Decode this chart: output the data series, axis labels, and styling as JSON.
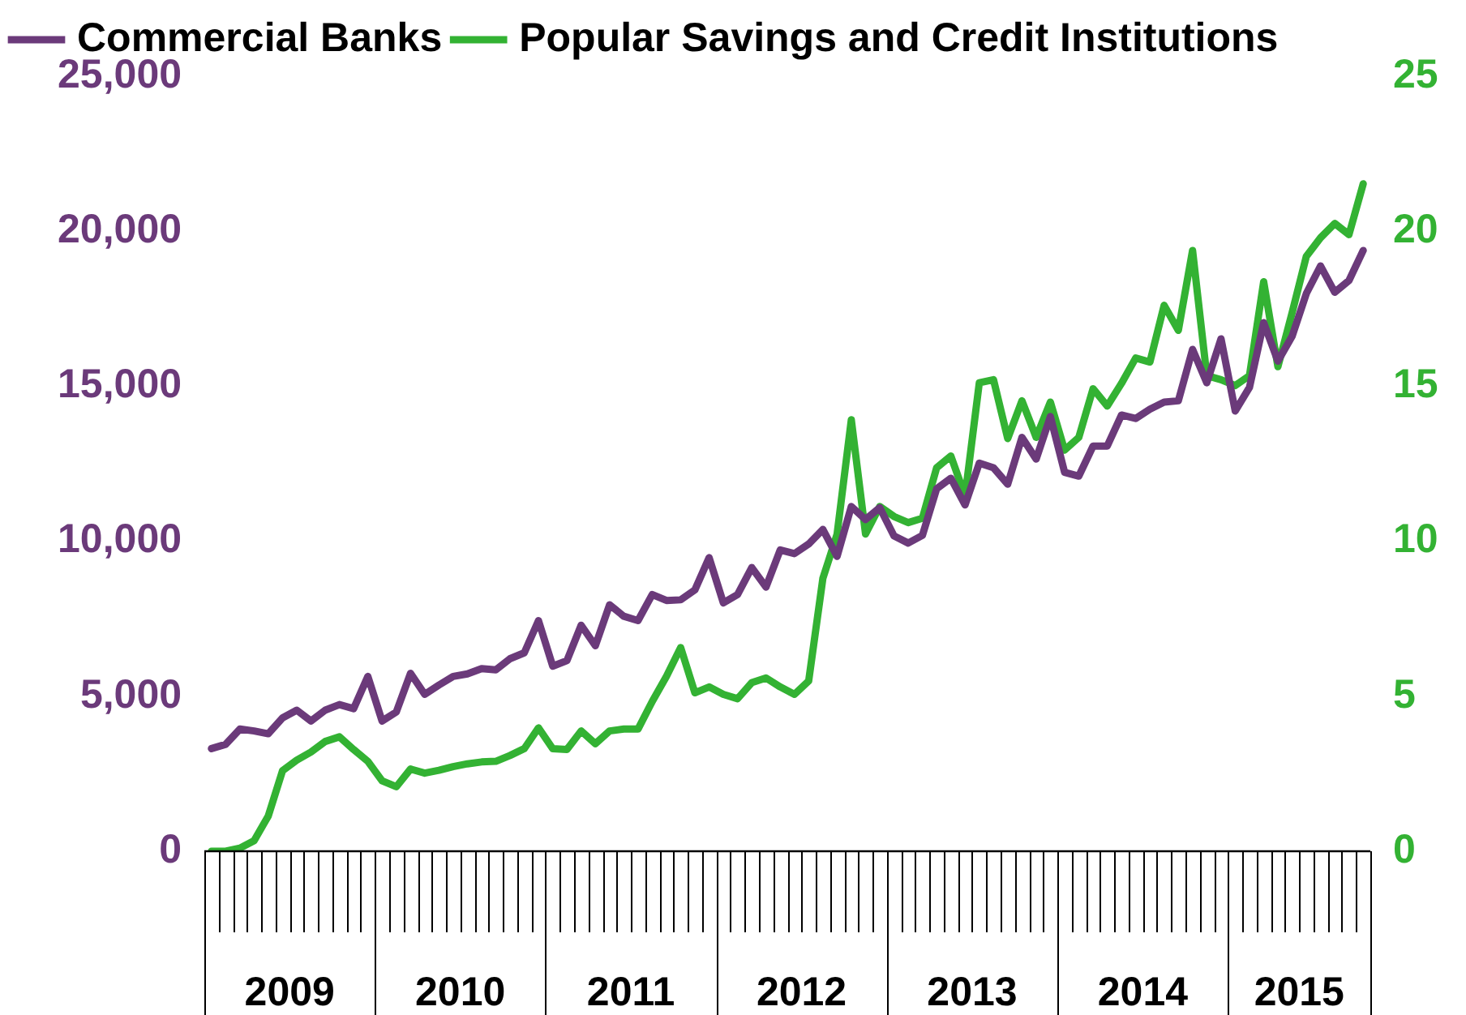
{
  "chart_data": {
    "type": "line",
    "legend": "top left",
    "marker": "none",
    "line_style": "solid",
    "grid": false,
    "categories": [
      null,
      null,
      null,
      null,
      null,
      "2009",
      null,
      null,
      null,
      null,
      null,
      null,
      null,
      null,
      null,
      null,
      null,
      "2010",
      null,
      null,
      null,
      null,
      null,
      null,
      null,
      null,
      null,
      null,
      null,
      "2011",
      null,
      null,
      null,
      null,
      null,
      null,
      null,
      null,
      null,
      null,
      null,
      "2012",
      null,
      null,
      null,
      null,
      null,
      null,
      null,
      null,
      null,
      null,
      null,
      "2013",
      null,
      null,
      null,
      null,
      null,
      null,
      null,
      null,
      null,
      null,
      null,
      "2014",
      null,
      null,
      null,
      null,
      null,
      null,
      null,
      null,
      null,
      null,
      null,
      "2015",
      null,
      null,
      null,
      null
    ],
    "ylim": [
      0,
      25000
    ],
    "yticks": [
      0,
      {
        "value": 5000,
        "label": "5,000"
      },
      {
        "value": 10000,
        "label": "10,000"
      },
      {
        "value": 15000,
        "label": "15,000"
      },
      {
        "value": 20000,
        "label": "20,000"
      },
      {
        "value": 25000,
        "label": "25,000"
      }
    ],
    "y2lim": [
      0,
      25
    ],
    "y2ticks": [
      0,
      5,
      10,
      15,
      20,
      25
    ],
    "series": [
      {
        "name": "Commercial Banks",
        "color": "#6b3a7a",
        "values": [
          3310,
          3450,
          3940,
          3880,
          3790,
          4300,
          4550,
          4200,
          4550,
          4730,
          4600,
          5640,
          4200,
          4490,
          5740,
          5060,
          5360,
          5640,
          5720,
          5890,
          5850,
          6210,
          6400,
          7440,
          5970,
          6150,
          7290,
          6630,
          7950,
          7580,
          7440,
          8280,
          8090,
          8110,
          8430,
          9470,
          8010,
          8280,
          9150,
          8520,
          9720,
          9600,
          9910,
          10380,
          9510,
          11120,
          10700,
          11080,
          10170,
          9940,
          10190,
          11690,
          12030,
          11170,
          12520,
          12370,
          11840,
          13350,
          12650,
          14020,
          12220,
          12100,
          13070,
          13070,
          14070,
          13960,
          14260,
          14490,
          14530,
          16190,
          15110,
          16530,
          14200,
          14960,
          17050,
          15810,
          16610,
          17990,
          18880,
          18030,
          18410,
          19380
        ]
      },
      {
        "name": "Popular Savings and Credit Institutions",
        "color": "#33b233",
        "axis": "y2",
        "values": [
          0,
          0,
          0.1,
          0.34,
          1.14,
          2.6,
          2.94,
          3.2,
          3.54,
          3.69,
          3.28,
          2.9,
          2.27,
          2.08,
          2.65,
          2.52,
          2.61,
          2.73,
          2.82,
          2.88,
          2.9,
          3.09,
          3.31,
          3.98,
          3.31,
          3.28,
          3.88,
          3.47,
          3.88,
          3.94,
          3.94,
          4.83,
          5.64,
          6.57,
          5.11,
          5.3,
          5.06,
          4.92,
          5.44,
          5.59,
          5.3,
          5.06,
          5.49,
          8.8,
          10.23,
          13.92,
          10.23,
          11.12,
          10.8,
          10.6,
          10.74,
          12.37,
          12.75,
          11.46,
          15.11,
          15.21,
          13.31,
          14.53,
          13.35,
          14.49,
          12.94,
          13.35,
          14.92,
          14.36,
          15.09,
          15.91,
          15.78,
          17.61,
          16.8,
          19.38,
          15.34,
          15.21,
          15.02,
          15.34,
          18.37,
          15.63,
          17.37,
          19.19,
          19.79,
          20.25,
          19.89,
          21.53
        ]
      }
    ]
  }
}
